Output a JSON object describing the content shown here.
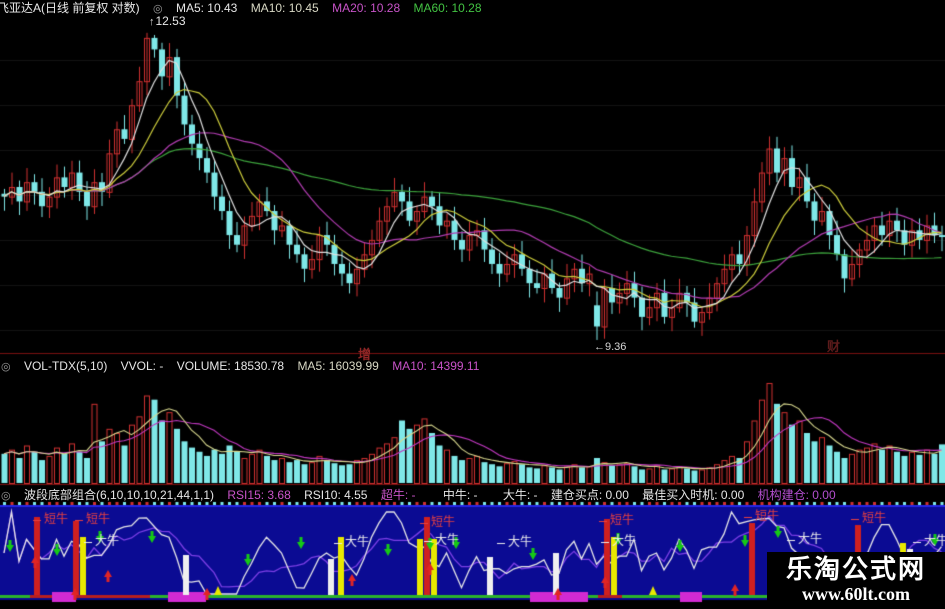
{
  "header": {
    "title": "飞亚达A(日线 前复权 对数)",
    "ma5": "MA5: 10.43",
    "ma10": "MA10: 10.45",
    "ma20": "MA20: 10.28",
    "ma60": "MA60: 10.28"
  },
  "volume_header": {
    "name": "VOL-TDX(5,10)",
    "vvol": "VVOL: -",
    "volume": "VOLUME: 18530.78",
    "ma5": "MA5: 16039.99",
    "ma10": "MA10: 14399.11"
  },
  "indicator_header": {
    "name": "波段底部组合(6,10,10,10,21,44,1,1)",
    "rsi15": "RSI15: 3.68",
    "rsi10": "RSI10: 4.55",
    "chao": "超牛: -",
    "zhong": "中牛: -",
    "da": "大牛: -",
    "jiancang": "建仓买点: 0.00",
    "zuijia": "最佳买入时机: 0.00",
    "jigou": "机构建仓: 0.00"
  },
  "icons": {
    "collapse": "◎"
  },
  "annotations": {
    "peak_icon": "↑",
    "peak": "12.53",
    "trough": "←9.36",
    "wm1": "增",
    "wm2": "财"
  },
  "watermark": {
    "line1": "乐淘公式网",
    "line2": "www.60lt.com"
  },
  "colors": {
    "bg": "#000000",
    "grid": "#131313",
    "candle_up": "#d03030",
    "candle_down": "#7fe8e8",
    "ma5": "#e0e0e0",
    "ma10": "#cdcd3c",
    "ma20": "#b13cb1",
    "ma60": "#3ca33c",
    "separator": "#7a1010",
    "panel_blue": "#0b0b93",
    "panel_blue_line": "#2626e6",
    "vol_ma5": "#d9d98f",
    "vol_ma10": "#c238c2",
    "rsi_fast": "#e8e8e8",
    "rsi_slow": "#7d3fe6",
    "baseline_green": "#2bb32b",
    "baseline_red": "#b81f1f",
    "block_magenta": "#d22ad2",
    "bar_red": "#cf2020",
    "bar_yellow": "#e8e800",
    "bar_white": "#efefef",
    "arrow_up": "#e02525",
    "arrow_down": "#16c916",
    "label_short": "#e84040",
    "label_big": "#ececec"
  },
  "chart_data": {
    "type": "candlestick+volume+indicator",
    "title": "飞亚达A 日线 前复权 对数",
    "price": {
      "ylim": [
        9.2,
        12.7
      ],
      "ma_windows": [
        5,
        10,
        20,
        60
      ],
      "last_ma": {
        "ma5": 10.43,
        "ma10": 10.45,
        "ma20": 10.28,
        "ma60": 10.28
      },
      "peak": {
        "index": 20,
        "high": 12.53
      },
      "trough": {
        "index": 79,
        "low": 9.36
      },
      "overrides": {
        "79": {
          "o": 9.72,
          "c": 9.5
        }
      },
      "closes": [
        10.85,
        10.95,
        10.8,
        11.0,
        10.9,
        10.75,
        10.85,
        11.05,
        10.95,
        11.1,
        10.9,
        10.75,
        11.0,
        10.9,
        11.3,
        11.55,
        11.45,
        11.8,
        12.05,
        12.5,
        12.38,
        12.1,
        12.3,
        11.9,
        11.6,
        11.4,
        11.25,
        11.1,
        10.85,
        10.7,
        10.45,
        10.35,
        10.55,
        10.65,
        10.8,
        10.7,
        10.5,
        10.55,
        10.35,
        10.25,
        10.1,
        10.2,
        10.45,
        10.35,
        10.15,
        10.05,
        9.95,
        10.1,
        10.25,
        10.4,
        10.6,
        10.75,
        10.9,
        10.8,
        10.6,
        10.7,
        10.85,
        10.75,
        10.55,
        10.6,
        10.4,
        10.3,
        10.45,
        10.5,
        10.3,
        10.15,
        10.05,
        10.15,
        10.25,
        10.1,
        9.95,
        9.9,
        10.05,
        9.9,
        9.8,
        10.0,
        10.1,
        9.95,
        10.05,
        9.5,
        9.9,
        9.75,
        9.85,
        9.95,
        9.8,
        9.6,
        9.7,
        9.85,
        9.6,
        9.7,
        9.85,
        9.75,
        9.55,
        9.65,
        9.8,
        9.95,
        10.1,
        10.25,
        10.15,
        10.45,
        10.8,
        11.1,
        11.35,
        11.1,
        11.25,
        10.95,
        11.05,
        10.8,
        10.6,
        10.7,
        10.45,
        10.25,
        10.0,
        10.15,
        10.3,
        10.4,
        10.55,
        10.45,
        10.6,
        10.5,
        10.35,
        10.5,
        10.4,
        10.55,
        10.45,
        10.43
      ]
    },
    "volume": {
      "last": 18530.78,
      "ma5": 16039.99,
      "ma10": 14399.11,
      "vmax": 48000,
      "values": [
        14000,
        16000,
        12000,
        18000,
        15000,
        11000,
        13000,
        17000,
        14000,
        19000,
        15000,
        12000,
        38000,
        20000,
        26000,
        24000,
        18000,
        28000,
        32000,
        42000,
        40000,
        30000,
        34000,
        26000,
        20000,
        17000,
        15000,
        13000,
        16000,
        14000,
        18000,
        15000,
        12000,
        14000,
        16000,
        13000,
        11000,
        12000,
        10000,
        11000,
        9000,
        10000,
        13000,
        11000,
        9500,
        8500,
        9000,
        11000,
        12000,
        14000,
        17000,
        19000,
        22000,
        30000,
        26000,
        28000,
        31000,
        24000,
        18000,
        16000,
        13000,
        11000,
        12000,
        13000,
        10000,
        9000,
        8000,
        9500,
        10500,
        9000,
        7500,
        7000,
        8500,
        7500,
        6500,
        8000,
        9000,
        7500,
        8000,
        12000,
        10000,
        8500,
        9000,
        9500,
        8000,
        6500,
        7000,
        8500,
        6500,
        7000,
        8000,
        7000,
        6000,
        6500,
        7500,
        9000,
        11000,
        13000,
        12000,
        20000,
        30000,
        40000,
        48000,
        38000,
        34000,
        28000,
        30000,
        24000,
        20000,
        22000,
        18000,
        15000,
        12000,
        14000,
        16000,
        17000,
        19000,
        16000,
        18000,
        15000,
        13000,
        15000,
        13500,
        16000,
        14000,
        18531
      ]
    },
    "indicator": {
      "rsi_fast_window": 5,
      "rsi_slow_window": 10,
      "last_rsi15": 3.68,
      "last_rsi10": 4.55,
      "short_bull_text": "短牛",
      "big_bull_text": "大牛",
      "bars": [
        {
          "x": 37,
          "c": "red",
          "h": 78
        },
        {
          "x": 76,
          "c": "red",
          "h": 74
        },
        {
          "x": 83,
          "c": "yellow",
          "h": 58
        },
        {
          "x": 186,
          "c": "white",
          "h": 40
        },
        {
          "x": 331,
          "c": "white",
          "h": 36
        },
        {
          "x": 341,
          "c": "yellow",
          "h": 58
        },
        {
          "x": 420,
          "c": "yellow",
          "h": 56
        },
        {
          "x": 427,
          "c": "red",
          "h": 78
        },
        {
          "x": 434,
          "c": "yellow",
          "h": 56
        },
        {
          "x": 490,
          "c": "white",
          "h": 38
        },
        {
          "x": 556,
          "c": "white",
          "h": 42
        },
        {
          "x": 607,
          "c": "red",
          "h": 76
        },
        {
          "x": 614,
          "c": "yellow",
          "h": 58
        },
        {
          "x": 752,
          "c": "red",
          "h": 72
        },
        {
          "x": 858,
          "c": "red",
          "h": 70
        },
        {
          "x": 903,
          "c": "yellow",
          "h": 52
        },
        {
          "x": 910,
          "c": "white",
          "h": 46
        }
      ],
      "short_bull_labels": [
        [
          44,
          514
        ],
        [
          86,
          514
        ],
        [
          431,
          517
        ],
        [
          610,
          515
        ],
        [
          755,
          511
        ],
        [
          862,
          513
        ]
      ],
      "big_bull_labels": [
        [
          95,
          536
        ],
        [
          345,
          537
        ],
        [
          435,
          535
        ],
        [
          508,
          537
        ],
        [
          612,
          536
        ],
        [
          798,
          534
        ],
        [
          924,
          536
        ]
      ],
      "down_arrows": [
        [
          10,
          552
        ],
        [
          57,
          556
        ],
        [
          100,
          543
        ],
        [
          152,
          543
        ],
        [
          248,
          566
        ],
        [
          301,
          549
        ],
        [
          388,
          556
        ],
        [
          430,
          550
        ],
        [
          456,
          549
        ],
        [
          533,
          560
        ],
        [
          618,
          545
        ],
        [
          680,
          552
        ],
        [
          745,
          547
        ],
        [
          778,
          538
        ],
        [
          935,
          546
        ]
      ],
      "up_arrows": [
        [
          35,
          556
        ],
        [
          75,
          588
        ],
        [
          108,
          570
        ],
        [
          207,
          588
        ],
        [
          352,
          574
        ],
        [
          430,
          563
        ],
        [
          558,
          588
        ],
        [
          605,
          576
        ],
        [
          735,
          584
        ],
        [
          845,
          592
        ],
        [
          918,
          570
        ]
      ],
      "baseline_red_segments": [
        [
          30,
          150
        ],
        [
          598,
          622
        ],
        [
          838,
          872
        ]
      ],
      "magenta_blocks": [
        [
          52,
          76
        ],
        [
          168,
          206
        ],
        [
          530,
          588
        ],
        [
          680,
          702
        ]
      ],
      "yellow_stubs": [
        218,
        653,
        893
      ]
    }
  }
}
